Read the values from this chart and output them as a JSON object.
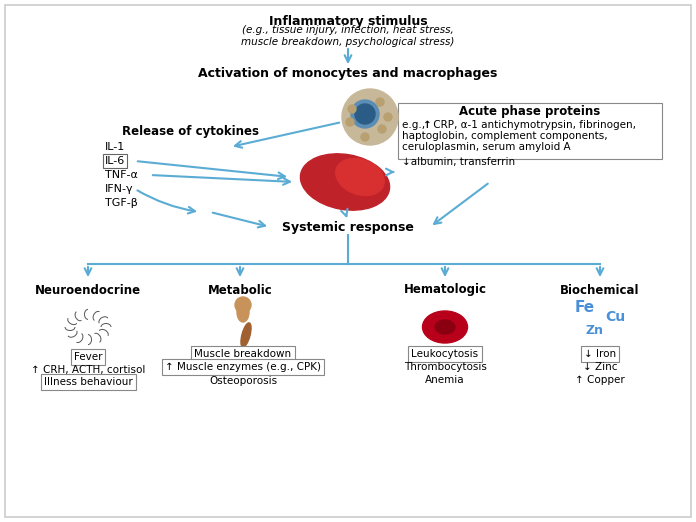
{
  "bg_color": "#f5f5f5",
  "arrow_color": "#5bacd4",
  "box_color": "#d0e8f5",
  "text_color": "#1a1a1a",
  "title_top": "Inflammatory stimulus",
  "title_top_sub": "(e.g., tissue injury, infection, heat stress,\nmuscle breakdown, psychological stress)",
  "label_monocytes": "Activation of monocytes and macrophages",
  "label_cytokines": "Release of cytokines",
  "cytokines_list": [
    "IL-1",
    "IL-6",
    "TNF-α",
    "IFN-γ",
    "TGF-β"
  ],
  "cytokines_boxed": "IL-6",
  "label_acute": "Acute phase proteins",
  "acute_text": "e.g., ↑ CRP, α-1 antichymotrypsin, fibrinogen,\nhaptoglobin, complement components,\nceruloplasmin, serum amyloid A",
  "acute_text2": "↓albumin, transferrin",
  "label_systemic": "Systemic response",
  "categories": [
    "Neuroendocrine",
    "Metabolic",
    "Hematologic",
    "Biochemical"
  ],
  "neuro_box": [
    "Fever",
    "↑ CRH, ACTH, cortisol",
    "Illness behaviour"
  ],
  "neuro_boxed_items": [
    0,
    2
  ],
  "metabolic_box": [
    "Muscle breakdown",
    "↑ Muscle enzymes (e.g., CPK)",
    "Osteoporosis"
  ],
  "metabolic_boxed_items": [
    0,
    1
  ],
  "hematologic_box": [
    "Leukocytosis",
    "Thrombocytosis",
    "Anemia"
  ],
  "hematologic_boxed_items": [
    0
  ],
  "biochem_box": [
    "↓ Iron",
    "↓ Zinc",
    "↑ Copper"
  ],
  "biochem_boxed_items": [
    0
  ],
  "fe_color": "#4a90d9",
  "cu_color": "#4a90d9",
  "zn_color": "#4a90d9"
}
